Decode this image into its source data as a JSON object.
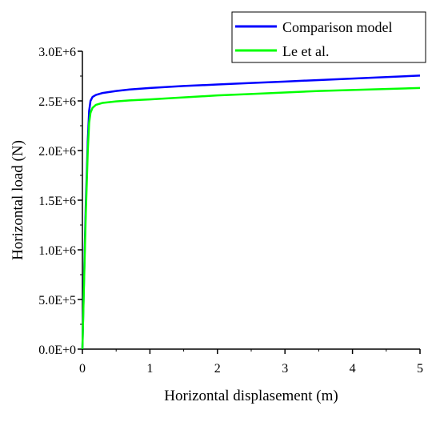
{
  "chart_data": {
    "type": "line",
    "title": "",
    "xlabel": "Horizontal displasement (m)",
    "ylabel": "Horizontal load (N)",
    "xlim": [
      0,
      5
    ],
    "ylim": [
      0,
      3000000
    ],
    "x_ticks": [
      0,
      1,
      2,
      3,
      4,
      5
    ],
    "x_tick_labels": [
      "0",
      "1",
      "2",
      "3",
      "4",
      "5"
    ],
    "y_ticks": [
      0,
      500000,
      1000000,
      1500000,
      2000000,
      2500000,
      3000000
    ],
    "y_tick_labels": [
      "0.0E+0",
      "5.0E+5",
      "1.0E+6",
      "1.5E+6",
      "2.0E+6",
      "2.5E+6",
      "3.0E+6"
    ],
    "grid": false,
    "legend_position": "top-right",
    "series": [
      {
        "name": "Comparison model",
        "color": "#0000ff",
        "x": [
          0,
          0.02,
          0.05,
          0.08,
          0.1,
          0.12,
          0.15,
          0.2,
          0.3,
          0.5,
          0.7,
          1.0,
          1.5,
          2.0,
          2.5,
          3.0,
          3.5,
          4.0,
          4.5,
          5.0
        ],
        "y": [
          0,
          600000,
          1450000,
          2100000,
          2400000,
          2500000,
          2540000,
          2560000,
          2580000,
          2600000,
          2615000,
          2630000,
          2650000,
          2665000,
          2680000,
          2695000,
          2710000,
          2725000,
          2740000,
          2755000
        ]
      },
      {
        "name": "Le et al.",
        "color": "#00ff00",
        "x": [
          0,
          0.02,
          0.05,
          0.08,
          0.1,
          0.12,
          0.15,
          0.2,
          0.3,
          0.5,
          0.7,
          1.0,
          1.5,
          2.0,
          2.5,
          3.0,
          3.5,
          4.0,
          4.5,
          5.0
        ],
        "y": [
          0,
          550000,
          1350000,
          2000000,
          2280000,
          2380000,
          2430000,
          2460000,
          2480000,
          2495000,
          2505000,
          2515000,
          2535000,
          2555000,
          2570000,
          2585000,
          2600000,
          2610000,
          2620000,
          2630000
        ]
      }
    ]
  }
}
